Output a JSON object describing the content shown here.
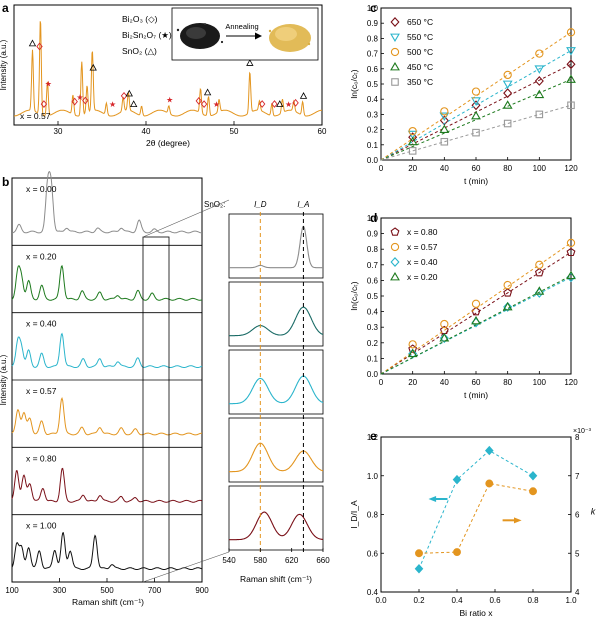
{
  "panels": {
    "a": {
      "letter": "a",
      "legend": {
        "bi2o3": "Bi₂O₃ (◇)",
        "bi2sn2o7": "Bi₂Sn₂O₇ (★)",
        "sno2": "SnO₂ (△)"
      },
      "inset_label": "Annealing",
      "x_annotation": "x = 0.57",
      "xlabel": "2θ (degree)",
      "ylabel": "Intensity (a.u.)",
      "xticks": [
        "30",
        "40",
        "50",
        "60"
      ],
      "xlim": [
        25,
        60
      ]
    },
    "b": {
      "letter": "b",
      "ylabel": "Intensity (a.u.)",
      "xlabel": "Raman shift (cm⁻¹)",
      "xticks": [
        "100",
        "300",
        "500",
        "700",
        "900"
      ],
      "xlim": [
        100,
        900
      ],
      "rows": [
        {
          "label": "x = 0.00",
          "color": "#8c8c8c"
        },
        {
          "label": "x = 0.20",
          "color": "#1e7a1e"
        },
        {
          "label": "x = 0.40",
          "color": "#2bb5cc"
        },
        {
          "label": "x = 0.57",
          "color": "#e3951f"
        },
        {
          "label": "x = 0.80",
          "color": "#7a1018"
        },
        {
          "label": "x = 1.00",
          "color": "#111111"
        }
      ],
      "zoom": {
        "sno2_label": "SnO₂:",
        "id_label": "I_D",
        "ia_label": "I_A",
        "xlabel": "Raman shift (cm⁻¹)",
        "xticks": [
          "540",
          "580",
          "620",
          "660"
        ],
        "xlim": [
          540,
          660
        ],
        "id_pos": 580,
        "ia_pos": 635
      }
    }
  },
  "chart_data": [
    {
      "panel": "c",
      "type": "line",
      "xlabel": "t (min)",
      "ylabel": "ln(c₀/cₜ)",
      "xlim": [
        0,
        120
      ],
      "ylim": [
        0,
        1.0
      ],
      "xticks": [
        0,
        20,
        40,
        60,
        80,
        100,
        120
      ],
      "yticks": [
        0.0,
        0.1,
        0.2,
        0.3,
        0.4,
        0.5,
        0.6,
        0.7,
        0.8,
        0.9,
        1.0
      ],
      "legend_position": "top-left",
      "x": [
        0,
        20,
        40,
        60,
        80,
        100,
        120
      ],
      "series": [
        {
          "name": "650 °C",
          "marker": "diamond",
          "color": "#7a1018",
          "values": [
            0,
            0.15,
            0.26,
            0.36,
            0.44,
            0.52,
            0.63
          ]
        },
        {
          "name": "550 °C",
          "marker": "triangle-down",
          "color": "#2bb5cc",
          "values": [
            0,
            0.17,
            0.29,
            0.39,
            0.5,
            0.6,
            0.72
          ]
        },
        {
          "name": "500 °C",
          "marker": "circle",
          "color": "#e3951f",
          "values": [
            0,
            0.19,
            0.32,
            0.45,
            0.56,
            0.7,
            0.84
          ]
        },
        {
          "name": "450 °C",
          "marker": "triangle-up",
          "color": "#1e7a1e",
          "values": [
            0,
            0.12,
            0.2,
            0.29,
            0.36,
            0.43,
            0.53
          ]
        },
        {
          "name": "350 °C",
          "marker": "square",
          "color": "#999999",
          "values": [
            0,
            0.06,
            0.12,
            0.18,
            0.24,
            0.3,
            0.36
          ]
        }
      ]
    },
    {
      "panel": "d",
      "type": "line",
      "xlabel": "t (min)",
      "ylabel": "ln(c₀/cₜ)",
      "xlim": [
        0,
        120
      ],
      "ylim": [
        0,
        1.0
      ],
      "xticks": [
        0,
        20,
        40,
        60,
        80,
        100,
        120
      ],
      "yticks": [
        0.0,
        0.1,
        0.2,
        0.3,
        0.4,
        0.5,
        0.6,
        0.7,
        0.8,
        0.9,
        1.0
      ],
      "legend_position": "top-left",
      "x": [
        0,
        20,
        40,
        60,
        80,
        100,
        120
      ],
      "series": [
        {
          "name": "x = 0.80",
          "marker": "pentagon",
          "color": "#7a1018",
          "values": [
            0,
            0.16,
            0.28,
            0.4,
            0.52,
            0.65,
            0.78
          ]
        },
        {
          "name": "x = 0.57",
          "marker": "circle",
          "color": "#e3951f",
          "values": [
            0,
            0.19,
            0.32,
            0.45,
            0.57,
            0.7,
            0.84
          ]
        },
        {
          "name": "x = 0.40",
          "marker": "diamond",
          "color": "#2bb5cc",
          "values": [
            0,
            0.13,
            0.23,
            0.33,
            0.43,
            0.52,
            0.62
          ]
        },
        {
          "name": "x = 0.20",
          "marker": "triangle-up",
          "color": "#1e7a1e",
          "values": [
            0,
            0.13,
            0.23,
            0.34,
            0.43,
            0.53,
            0.63
          ]
        }
      ]
    },
    {
      "panel": "e",
      "type": "scatter",
      "xlabel": "Bi ratio x",
      "ylabel_left": "I_D/I_A",
      "ylabel_right": "k",
      "right_axis_multiplier": "×10⁻³",
      "xlim": [
        0,
        1.0
      ],
      "ylim_left": [
        0.4,
        1.2
      ],
      "ylim_right": [
        4,
        8
      ],
      "xticks": [
        0.0,
        0.2,
        0.4,
        0.6,
        0.8,
        1.0
      ],
      "yticks_left": [
        0.4,
        0.6,
        0.8,
        1.0,
        1.2
      ],
      "yticks_right": [
        4,
        5,
        6,
        7,
        8
      ],
      "series": [
        {
          "name": "I_D/I_A",
          "axis": "left",
          "marker": "diamond",
          "color": "#2bb5cc",
          "x": [
            0.2,
            0.4,
            0.57,
            0.8
          ],
          "values": [
            0.52,
            0.98,
            1.13,
            1.0
          ]
        },
        {
          "name": "k",
          "axis": "right",
          "marker": "circle",
          "color": "#e3951f",
          "x": [
            0.2,
            0.4,
            0.57,
            0.8
          ],
          "values": [
            5.0,
            5.03,
            6.8,
            6.6
          ]
        }
      ]
    }
  ]
}
